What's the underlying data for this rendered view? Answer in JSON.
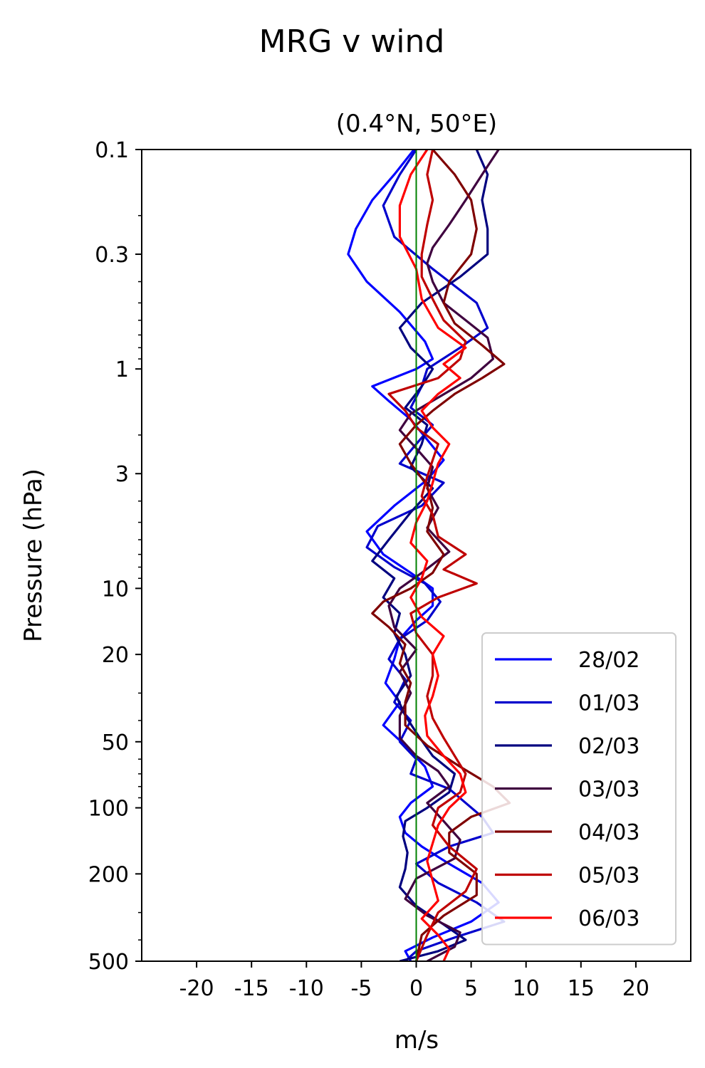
{
  "chart_data": {
    "type": "line",
    "title": "MRG v wind",
    "subtitle": "(0.4°N, 50°E)",
    "xlabel": "m/s",
    "ylabel": "Pressure (hPa)",
    "xlim": [
      -25,
      25
    ],
    "ylim": [
      500,
      0.1
    ],
    "yscale": "log",
    "x_ticks": [
      -20,
      -15,
      -10,
      -5,
      0,
      5,
      10,
      15,
      20
    ],
    "x_tick_labels": [
      "-20",
      "-15",
      "-10",
      "-5",
      "0",
      "5",
      "10",
      "15",
      "20"
    ],
    "y_ticks": [
      0.1,
      0.3,
      1,
      3,
      10,
      20,
      50,
      100,
      200,
      500
    ],
    "y_tick_labels": [
      "0.1",
      "0.3",
      "1",
      "3",
      "10",
      "20",
      "50",
      "100",
      "200",
      "500"
    ],
    "grid": false,
    "legend_position": "bottom-right",
    "zero_line_color": "#008000",
    "series": [
      {
        "name": "28/02",
        "color": "#0000ff",
        "x": [
          -0.2,
          -2,
          -4,
          -5.5,
          -6.2,
          -4.5,
          -1.5,
          0.8,
          1.5,
          0,
          -4,
          -2.5,
          -0.5,
          1,
          2.5,
          1,
          -2,
          -4.5,
          -3,
          -0.5,
          1.5,
          1.5,
          0,
          -1.5,
          -2,
          -2.8,
          -1.5,
          -3,
          -1,
          0.8,
          1.5,
          -0.5,
          -1.5,
          -1,
          0.5,
          3,
          6,
          7.5,
          5,
          1.5,
          -1,
          -0.5
        ],
        "p": [
          0.1,
          0.13,
          0.17,
          0.23,
          0.3,
          0.4,
          0.55,
          0.75,
          0.9,
          1.0,
          1.2,
          1.4,
          1.7,
          2.1,
          2.6,
          3.2,
          4.2,
          5.5,
          7,
          8.5,
          10,
          12,
          14,
          17,
          21,
          27,
          33,
          42,
          52,
          65,
          80,
          95,
          110,
          130,
          150,
          180,
          220,
          270,
          330,
          390,
          450,
          500
        ]
      },
      {
        "name": "01/03",
        "color": "#0000cc",
        "x": [
          0,
          -1.5,
          -3,
          -2,
          1.5,
          5.5,
          6.5,
          4,
          1,
          0.5,
          -0.5,
          1.5,
          0,
          -1.5,
          2.5,
          0.5,
          -3.5,
          -4.5,
          -2,
          0.8,
          2.2,
          1,
          -1.5,
          -2.5,
          -1,
          -2,
          -0.5,
          -1.5,
          0,
          -0.5,
          3,
          4.5,
          6,
          7,
          3,
          0,
          2,
          5.5,
          8,
          3.5,
          0,
          -1
        ],
        "p": [
          0.1,
          0.13,
          0.18,
          0.25,
          0.35,
          0.5,
          0.65,
          0.8,
          1.0,
          1.2,
          1.5,
          1.8,
          2.2,
          2.7,
          3.3,
          4.2,
          5.2,
          6.5,
          8,
          9.5,
          11.5,
          14,
          17,
          21,
          26,
          33,
          40,
          50,
          60,
          70,
          82,
          95,
          110,
          130,
          150,
          180,
          220,
          270,
          330,
          390,
          450,
          500
        ]
      },
      {
        "name": "02/03",
        "color": "#00007f",
        "x": [
          5.5,
          6.5,
          6,
          6.5,
          6.5,
          4,
          0.5,
          -1.5,
          -0.5,
          1.5,
          0.5,
          -1,
          1,
          0.5,
          -0.5,
          1.5,
          -0.5,
          -2.5,
          -4,
          -2,
          -3,
          -1.5,
          -2,
          -1,
          -0.5,
          -1.8,
          -1,
          0.2,
          1.5,
          3.5,
          3,
          1,
          -1,
          -1.2,
          -0.8,
          -1,
          -1.5,
          0,
          2.5,
          4.5,
          2,
          -1.5
        ],
        "p": [
          0.1,
          0.13,
          0.17,
          0.23,
          0.3,
          0.38,
          0.5,
          0.65,
          0.8,
          1.0,
          1.2,
          1.5,
          1.8,
          2.2,
          2.8,
          3.5,
          4.5,
          6,
          7.5,
          9,
          11,
          13,
          16,
          20,
          25,
          31,
          38,
          47,
          58,
          70,
          85,
          100,
          115,
          135,
          160,
          190,
          230,
          280,
          340,
          400,
          450,
          500
        ]
      },
      {
        "name": "03/03",
        "color": "#3f003f",
        "x": [
          7.5,
          6,
          4.5,
          3,
          1.5,
          1,
          1.5,
          2.5,
          4.5,
          6.5,
          7,
          5,
          2,
          -0.5,
          -1.5,
          0,
          1.5,
          1,
          2,
          1,
          3,
          0.5,
          -1.5,
          -2.5,
          -2,
          0,
          -1.5,
          -0.5,
          -1.5,
          -1.5,
          0,
          2,
          3,
          1,
          2.5,
          4,
          3.5,
          0,
          -1,
          1,
          4,
          3.5,
          1
        ],
        "p": [
          0.1,
          0.13,
          0.17,
          0.22,
          0.28,
          0.33,
          0.4,
          0.5,
          0.6,
          0.72,
          0.9,
          1.1,
          1.35,
          1.6,
          1.9,
          2.3,
          2.8,
          3.5,
          4.3,
          5.3,
          6.8,
          8.5,
          10,
          12,
          15,
          19,
          24,
          30,
          38,
          48,
          58,
          68,
          80,
          95,
          115,
          140,
          170,
          210,
          260,
          310,
          370,
          430,
          500
        ]
      },
      {
        "name": "04/03",
        "color": "#7f0000",
        "x": [
          1.5,
          3.5,
          5,
          5.5,
          5,
          3,
          2.5,
          3.5,
          6,
          8,
          6,
          3.5,
          1.5,
          0,
          -1.5,
          -0.5,
          1,
          1.5,
          1,
          2.5,
          1.5,
          -0.5,
          -3,
          -4,
          -2.5,
          -1,
          -1.5,
          -0.5,
          -1,
          -1,
          1,
          4,
          7,
          8.5,
          5,
          3,
          3,
          5.5,
          5.5,
          2.5,
          0.5,
          0
        ],
        "p": [
          0.1,
          0.13,
          0.17,
          0.23,
          0.3,
          0.4,
          0.5,
          0.62,
          0.78,
          0.95,
          1.1,
          1.3,
          1.55,
          1.8,
          2.2,
          2.7,
          3.4,
          4.3,
          5.5,
          7,
          8.5,
          10,
          11.5,
          13,
          15,
          18,
          22,
          27,
          33,
          42,
          52,
          65,
          80,
          95,
          110,
          130,
          160,
          200,
          250,
          310,
          380,
          500
        ]
      },
      {
        "name": "05/03",
        "color": "#bf0000",
        "x": [
          1.5,
          1,
          1.5,
          1,
          0.5,
          0.5,
          1.5,
          2.5,
          4.5,
          4,
          2,
          -2.5,
          -1,
          0,
          2,
          1.5,
          1,
          0.5,
          1.5,
          2,
          4.5,
          2.5,
          5.5,
          2,
          -0.5,
          0,
          1.5,
          1.5,
          1,
          1.5,
          2.5,
          3.5,
          4.5,
          4,
          2,
          1.5,
          3,
          5.5,
          4.5,
          2,
          1,
          0
        ],
        "p": [
          0.1,
          0.13,
          0.17,
          0.22,
          0.3,
          0.38,
          0.48,
          0.6,
          0.75,
          0.9,
          1.1,
          1.3,
          1.55,
          1.85,
          2.2,
          2.6,
          3.1,
          3.8,
          4.6,
          5.8,
          7,
          8.2,
          9.5,
          11,
          13,
          16,
          20,
          25,
          31,
          39,
          48,
          58,
          70,
          85,
          100,
          120,
          150,
          190,
          240,
          300,
          380,
          500
        ]
      },
      {
        "name": "06/03",
        "color": "#ff0000",
        "x": [
          1,
          -0.5,
          -1.5,
          -1.5,
          0,
          0.5,
          2,
          4.5,
          2.5,
          4,
          2,
          0.5,
          1.5,
          3,
          2,
          1.5,
          1,
          0,
          -0.5,
          1,
          0.5,
          -0.5,
          0.5,
          2.5,
          1.5,
          2,
          1.5,
          0.8,
          1,
          2.5,
          4,
          4.5,
          3,
          2,
          1.5,
          1,
          1.5,
          2,
          0.5,
          2,
          3,
          2.5
        ],
        "p": [
          0.1,
          0.13,
          0.18,
          0.25,
          0.35,
          0.48,
          0.65,
          0.8,
          0.95,
          1.1,
          1.3,
          1.55,
          1.85,
          2.2,
          2.7,
          3.3,
          4.0,
          5.0,
          6.2,
          7.5,
          9,
          11,
          13.5,
          16.5,
          20,
          25,
          31,
          38,
          47,
          58,
          70,
          85,
          100,
          120,
          145,
          175,
          215,
          265,
          320,
          380,
          440,
          500
        ]
      }
    ]
  }
}
